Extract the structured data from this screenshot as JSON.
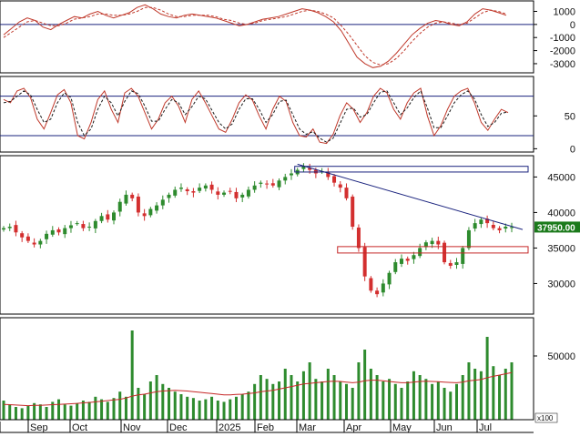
{
  "chart_data": {
    "type": "financial-multi-panel",
    "x_axis": {
      "labels": [
        "Sep",
        "Oct",
        "Nov",
        "Dec",
        "2025",
        "Feb",
        "Mar",
        "Apr",
        "May",
        "Jun",
        "Jul"
      ],
      "unit_label": "x100"
    },
    "panels": [
      {
        "name": "oscillator-1",
        "type": "line",
        "y_ticks": [
          "1000",
          "0",
          "-1000",
          "-2000",
          "-3000"
        ],
        "y_tick_values": [
          1000,
          0,
          -1000,
          -2000,
          -3000
        ],
        "ylim": [
          -3700,
          1800
        ],
        "reference_lines": [
          0
        ],
        "series": [
          {
            "style": "solid",
            "color": "#c0392b",
            "values": [
              -800,
              -300,
              200,
              500,
              300,
              -200,
              -400,
              0,
              300,
              600,
              500,
              800,
              1000,
              700,
              500,
              700,
              900,
              1300,
              1500,
              1200,
              800,
              600,
              500,
              700,
              800,
              700,
              600,
              500,
              300,
              100,
              -100,
              0,
              200,
              400,
              500,
              600,
              800,
              1000,
              1200,
              1100,
              900,
              600,
              200,
              -500,
              -1500,
              -2500,
              -3000,
              -3300,
              -3200,
              -2800,
              -2200,
              -1500,
              -800,
              -300,
              100,
              300,
              200,
              0,
              -100,
              200,
              800,
              1200,
              1100,
              900,
              700
            ]
          },
          {
            "style": "dashed",
            "color": "#c0392b",
            "values": [
              -1000,
              -600,
              -200,
              200,
              300,
              100,
              -100,
              -100,
              100,
              400,
              500,
              600,
              800,
              800,
              700,
              700,
              800,
              1000,
              1300,
              1300,
              1100,
              800,
              600,
              600,
              700,
              700,
              700,
              600,
              400,
              300,
              100,
              0,
              100,
              300,
              400,
              500,
              600,
              800,
              1000,
              1100,
              1000,
              800,
              500,
              -100,
              -800,
              -1600,
              -2400,
              -2900,
              -3100,
              -3000,
              -2600,
              -2000,
              -1300,
              -700,
              -200,
              100,
              200,
              100,
              0,
              100,
              500,
              900,
              1100,
              1000,
              800
            ]
          }
        ]
      },
      {
        "name": "oscillator-2",
        "type": "line",
        "y_ticks": [
          "50",
          "0"
        ],
        "y_tick_values": [
          50,
          0
        ],
        "ylim": [
          -5,
          110
        ],
        "reference_lines": [
          80,
          20
        ],
        "series": [
          {
            "style": "solid",
            "color": "#c0392b",
            "values": [
              75,
              70,
              88,
              92,
              78,
              45,
              30,
              55,
              82,
              90,
              70,
              20,
              15,
              40,
              75,
              88,
              60,
              40,
              85,
              92,
              80,
              55,
              30,
              45,
              70,
              80,
              65,
              40,
              75,
              88,
              70,
              50,
              30,
              25,
              45,
              70,
              82,
              74,
              50,
              30,
              60,
              80,
              72,
              40,
              20,
              18,
              30,
              10,
              8,
              22,
              50,
              70,
              60,
              40,
              55,
              80,
              92,
              85,
              60,
              45,
              70,
              85,
              92,
              50,
              20,
              35,
              60,
              80,
              88,
              92,
              70,
              40,
              28,
              45,
              60,
              55
            ]
          },
          {
            "style": "dashed",
            "color": "#1a1a1a",
            "values": [
              70,
              72,
              80,
              88,
              82,
              60,
              40,
              45,
              70,
              85,
              78,
              40,
              20,
              30,
              60,
              80,
              70,
              50,
              72,
              88,
              84,
              65,
              42,
              42,
              60,
              75,
              70,
              52,
              64,
              80,
              76,
              58,
              40,
              30,
              38,
              60,
              76,
              76,
              60,
              40,
              52,
              72,
              74,
              52,
              30,
              22,
              26,
              16,
              10,
              16,
              38,
              60,
              62,
              48,
              52,
              70,
              86,
              88,
              70,
              52,
              62,
              78,
              88,
              62,
              32,
              32,
              50,
              70,
              82,
              88,
              76,
              52,
              34,
              40,
              54,
              56
            ]
          }
        ]
      },
      {
        "name": "price",
        "type": "candlestick",
        "y_ticks": [
          "45000",
          "40000",
          "35000",
          "30000"
        ],
        "y_tick_values": [
          45000,
          40000,
          35000,
          30000
        ],
        "ylim": [
          25700,
          48000
        ],
        "last_price_label": "37950.00",
        "last_price": 37950,
        "close_series": [
          37800,
          38000,
          37200,
          36500,
          36000,
          35500,
          36000,
          37000,
          37500,
          37200,
          37800,
          38200,
          38500,
          37800,
          38000,
          38800,
          39500,
          39000,
          40000,
          41500,
          42500,
          42000,
          40000,
          39500,
          40500,
          41000,
          41800,
          42500,
          43200,
          43500,
          43000,
          42800,
          43500,
          43800,
          43200,
          42500,
          42800,
          43000,
          42000,
          42500,
          43200,
          43800,
          44200,
          44000,
          43800,
          44500,
          45000,
          45500,
          46000,
          46500,
          46000,
          45500,
          45800,
          45000,
          44200,
          43500,
          42000,
          38000,
          35000,
          31000,
          29000,
          28500,
          30000,
          31500,
          33000,
          33500,
          33200,
          34000,
          35000,
          35800,
          36000,
          35500,
          33000,
          32500,
          33000,
          35000,
          37500,
          38500,
          39000,
          38500,
          37800,
          37500,
          38000,
          37950
        ],
        "resistance_line": {
          "from": {
            "i": 48,
            "price": 46800
          },
          "to": {
            "i": 83,
            "price": 37600
          }
        },
        "zones": [
          {
            "name": "upper-zone",
            "from_i": 48,
            "to_i": 83,
            "low": 45700,
            "high": 46500
          },
          {
            "name": "support-zone",
            "from_i": 55,
            "to_i": 83,
            "low": 34300,
            "high": 35200
          }
        ]
      },
      {
        "name": "volume",
        "type": "bar",
        "y_ticks": [
          "50000"
        ],
        "y_tick_values": [
          50000
        ],
        "ylim": [
          0,
          80000
        ],
        "volume_series": [
          15000,
          12000,
          10000,
          9000,
          11000,
          13000,
          12000,
          10000,
          14000,
          16000,
          12000,
          11000,
          13000,
          15000,
          14000,
          18000,
          16000,
          14000,
          17000,
          22000,
          18000,
          70000,
          25000,
          20000,
          30000,
          35000,
          28000,
          25000,
          22000,
          20000,
          18000,
          17000,
          15000,
          16000,
          18000,
          15000,
          14000,
          16000,
          18000,
          20000,
          22000,
          28000,
          35000,
          32000,
          28000,
          30000,
          40000,
          35000,
          30000,
          38000,
          45000,
          32000,
          30000,
          40000,
          35000,
          30000,
          28000,
          25000,
          45000,
          55000,
          40000,
          35000,
          30000,
          32000,
          28000,
          25000,
          30000,
          38000,
          35000,
          32000,
          28000,
          30000,
          25000,
          22000,
          28000,
          35000,
          45000,
          40000,
          38000,
          65000,
          42000,
          35000,
          40000,
          45000
        ],
        "ma_series": [
          12000,
          11800,
          11500,
          11200,
          11000,
          11200,
          11300,
          11500,
          11800,
          12000,
          12200,
          12500,
          12800,
          13200,
          13500,
          14000,
          14500,
          15000,
          15500,
          16000,
          17000,
          18500,
          19500,
          20000,
          21000,
          22000,
          22500,
          22800,
          23000,
          22800,
          22500,
          22000,
          21500,
          21000,
          20500,
          20000,
          19500,
          19500,
          19800,
          20000,
          20500,
          21000,
          22000,
          22500,
          23000,
          24000,
          25000,
          26000,
          27000,
          28000,
          28500,
          29000,
          29500,
          30000,
          30200,
          30000,
          29500,
          29000,
          29500,
          30500,
          31000,
          31000,
          30500,
          30000,
          29500,
          29000,
          29000,
          29500,
          30000,
          30200,
          30000,
          29800,
          29500,
          29200,
          29000,
          29500,
          30500,
          31000,
          31500,
          33000,
          34000,
          35000,
          36000,
          37000
        ]
      }
    ]
  }
}
